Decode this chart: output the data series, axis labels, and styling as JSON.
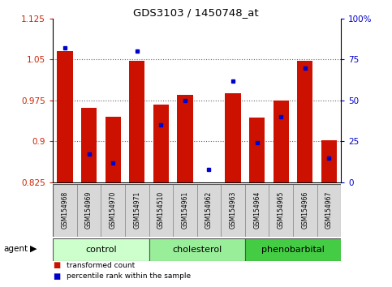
{
  "title": "GDS3103 / 1450748_at",
  "samples": [
    "GSM154968",
    "GSM154969",
    "GSM154970",
    "GSM154971",
    "GSM154510",
    "GSM154961",
    "GSM154962",
    "GSM154963",
    "GSM154964",
    "GSM154965",
    "GSM154966",
    "GSM154967"
  ],
  "groups": [
    {
      "name": "control",
      "color": "#ccffcc",
      "indices": [
        0,
        1,
        2,
        3
      ]
    },
    {
      "name": "cholesterol",
      "color": "#99ee99",
      "indices": [
        4,
        5,
        6,
        7
      ]
    },
    {
      "name": "phenobarbital",
      "color": "#44cc44",
      "indices": [
        8,
        9,
        10,
        11
      ]
    }
  ],
  "bar_bottom": 0.825,
  "transformed_counts": [
    1.065,
    0.962,
    0.945,
    1.047,
    0.968,
    0.985,
    0.824,
    0.988,
    0.943,
    0.975,
    1.047,
    0.902
  ],
  "percentile_ranks": [
    82,
    17,
    12,
    80,
    35,
    50,
    8,
    62,
    24,
    40,
    70,
    15
  ],
  "ylim_left": [
    0.825,
    1.125
  ],
  "ylim_right": [
    0,
    100
  ],
  "yticks_left": [
    0.825,
    0.9,
    0.975,
    1.05,
    1.125
  ],
  "yticks_left_labels": [
    "0.825",
    "0.9",
    "0.975",
    "1.05",
    "1.125"
  ],
  "yticks_right": [
    0,
    25,
    50,
    75,
    100
  ],
  "yticks_right_labels": [
    "0",
    "25",
    "50",
    "75",
    "100%"
  ],
  "bar_color": "#cc1100",
  "dot_color": "#0000cc",
  "bar_width": 0.65,
  "tick_label_color_left": "#cc2200",
  "tick_label_color_right": "#0000cc",
  "gridline_color": "#000000",
  "gridline_alpha": 0.6,
  "sample_box_color": "#d8d8d8",
  "group_colors": [
    "#ccffcc",
    "#99ee99",
    "#44cc44"
  ]
}
